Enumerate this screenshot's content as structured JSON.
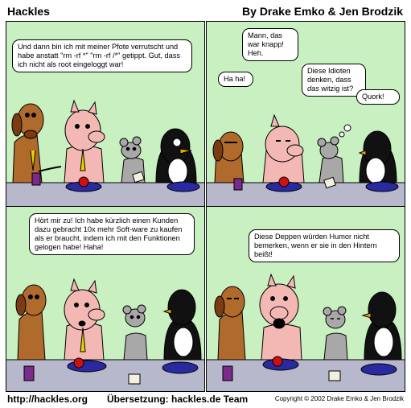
{
  "header": {
    "title": "Hackles",
    "byline": "By Drake Emko & Jen Brodzik"
  },
  "panels": [
    {
      "bubbles": [
        "Und dann bin ich mit meiner Pfote verrutscht und habe anstatt \"rm -rf *\" \"rm -rf /*\" getippt. Gut, dass ich nicht als root eingeloggt war!"
      ]
    },
    {
      "bubbles": [
        "Mann, das war knapp! Heh.",
        "Ha ha!",
        "Diese Idioten denken, dass",
        "das",
        "witzig ist?",
        "Quork!"
      ]
    },
    {
      "bubbles": [
        "Hört mir zu! Ich habe kürzlich einen Kunden dazu gebracht 10x mehr Soft-ware zu kaufen als er braucht, indem ich mit den Funktionen gelogen habe! Haha!"
      ]
    },
    {
      "bubbles": [
        "Diese Deppen würden Humor nicht bemerken, wenn er sie in den Hintern beißt!"
      ]
    }
  ],
  "footer": {
    "url": "http://hackles.org",
    "translation": "Übersetzung: hackles.de Team",
    "copyright": "Copyright © 2002 Drake Emko & Jen Brodzik"
  },
  "colors": {
    "sky": "#c8f0c0",
    "table": "#b8b8cc",
    "dog": "#b06a2c",
    "pig": "#f4b8b4",
    "mouse": "#a8a8a8",
    "penguin": "#111111",
    "plate": "#2a2aa0",
    "can": "#7a2a8a"
  }
}
